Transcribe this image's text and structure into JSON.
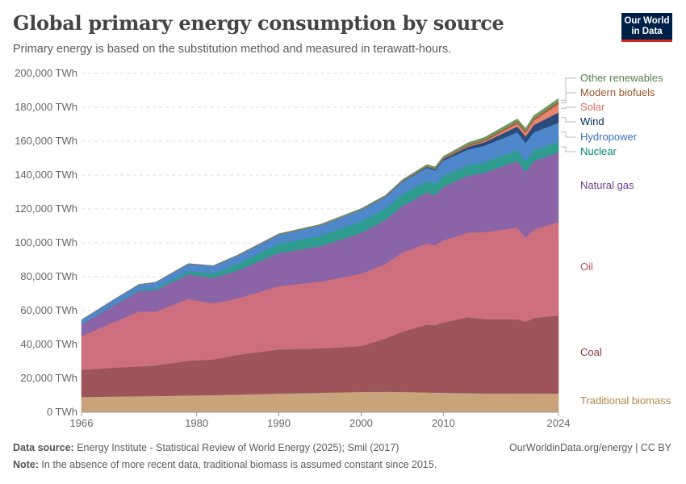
{
  "header": {
    "title": "Global primary energy consumption by source",
    "subtitle": "Primary energy is based on the substitution method and measured in terawatt-hours.",
    "logo_line1": "Our World",
    "logo_line2": "in Data"
  },
  "footer": {
    "source_label": "Data source:",
    "source_text": " Energy Institute - Statistical Review of World Energy (2025); Smil (2017)",
    "url": "OurWorldinData.org/energy | CC BY",
    "note_label": "Note:",
    "note_text": " In the absence of more recent data, traditional biomass is assumed constant since 2015."
  },
  "chart_data": {
    "type": "area",
    "stacked": true,
    "unit": "TWh",
    "xlim": [
      1966,
      2024
    ],
    "ylim": [
      0,
      200000
    ],
    "grid": true,
    "legend_placement": "right",
    "x_ticks": [
      1966,
      1980,
      1990,
      2000,
      2010,
      2024
    ],
    "y_ticks": [
      {
        "value": 0,
        "label": "0 TWh"
      },
      {
        "value": 20000,
        "label": "20,000 TWh"
      },
      {
        "value": 40000,
        "label": "40,000 TWh"
      },
      {
        "value": 60000,
        "label": "60,000 TWh"
      },
      {
        "value": 80000,
        "label": "80,000 TWh"
      },
      {
        "value": 100000,
        "label": "100,000 TWh"
      },
      {
        "value": 120000,
        "label": "120,000 TWh"
      },
      {
        "value": 140000,
        "label": "140,000 TWh"
      },
      {
        "value": 160000,
        "label": "160,000 TWh"
      },
      {
        "value": 180000,
        "label": "180,000 TWh"
      },
      {
        "value": 200000,
        "label": "200,000 TWh"
      }
    ],
    "x": [
      1966,
      1970,
      1973,
      1975,
      1979,
      1982,
      1985,
      1990,
      1995,
      2000,
      2003,
      2005,
      2008,
      2009,
      2010,
      2013,
      2015,
      2019,
      2020,
      2021,
      2024
    ],
    "series": [
      {
        "name": "Traditional biomass",
        "color": "#c9a47a",
        "label_color": "#b5864a",
        "values": [
          9000,
          9300,
          9500,
          9600,
          9900,
          10100,
          10400,
          11000,
          11500,
          12000,
          12100,
          12000,
          11700,
          11600,
          11500,
          11300,
          11100,
          11100,
          11100,
          11100,
          11100
        ]
      },
      {
        "name": "Coal",
        "color": "#9d555b",
        "label_color": "#883039",
        "values": [
          16000,
          17000,
          17500,
          18000,
          20500,
          21000,
          23500,
          26000,
          26200,
          27000,
          31500,
          35500,
          40000,
          39800,
          41500,
          44800,
          43800,
          43800,
          42300,
          44500,
          46000
        ]
      },
      {
        "name": "Oil",
        "color": "#cd6f7f",
        "label_color": "#c15065",
        "values": [
          20000,
          27000,
          32500,
          31800,
          36500,
          33200,
          33300,
          37500,
          39300,
          42800,
          44000,
          46700,
          47900,
          47200,
          48400,
          50000,
          51500,
          54100,
          49800,
          52300,
          55300
        ]
      },
      {
        "name": "Natural gas",
        "color": "#8a64a6",
        "label_color": "#6d3e91",
        "values": [
          6800,
          10000,
          12000,
          12500,
          14500,
          15000,
          16500,
          19500,
          21000,
          24000,
          26000,
          27500,
          30000,
          29500,
          31700,
          33500,
          35000,
          39300,
          38700,
          40400,
          41000
        ]
      },
      {
        "name": "Nuclear",
        "color": "#2f9c90",
        "label_color": "#00847e",
        "values": [
          150,
          250,
          600,
          1100,
          2000,
          2500,
          4000,
          5500,
          6200,
          6800,
          6800,
          7000,
          6800,
          6600,
          6700,
          6000,
          6100,
          6500,
          6200,
          6300,
          6400
        ]
      },
      {
        "name": "Hydropower",
        "color": "#4f87cb",
        "label_color": "#3a72c0",
        "values": [
          2500,
          3100,
          3300,
          3600,
          4200,
          4500,
          4800,
          5300,
          6000,
          6800,
          6800,
          7300,
          8000,
          8000,
          8700,
          9500,
          9800,
          10500,
          10900,
          10700,
          11100
        ]
      },
      {
        "name": "Wind",
        "color": "#2b4b7b",
        "label_color": "#00295b",
        "values": [
          0,
          0,
          0,
          0,
          0,
          0,
          0,
          10,
          20,
          80,
          160,
          240,
          500,
          680,
          850,
          1600,
          2100,
          3400,
          3800,
          4300,
          6000
        ]
      },
      {
        "name": "Solar",
        "color": "#e9846f",
        "label_color": "#e56e5a",
        "values": [
          0,
          0,
          0,
          0,
          0,
          0,
          0,
          0,
          0,
          0,
          5,
          10,
          30,
          50,
          85,
          360,
          640,
          1700,
          2100,
          2600,
          5000
        ]
      },
      {
        "name": "Modern biofuels",
        "color": "#9e5c3e",
        "label_color": "#a2552c",
        "values": [
          0,
          0,
          0,
          0,
          20,
          50,
          60,
          70,
          80,
          100,
          150,
          200,
          450,
          500,
          590,
          750,
          850,
          1100,
          1000,
          1100,
          1300
        ]
      },
      {
        "name": "Other renewables",
        "color": "#6f9d5a",
        "label_color": "#578145",
        "values": [
          50,
          60,
          70,
          80,
          100,
          150,
          250,
          450,
          520,
          600,
          650,
          700,
          800,
          900,
          1000,
          1200,
          1300,
          1600,
          1650,
          1700,
          1900
        ]
      }
    ]
  }
}
